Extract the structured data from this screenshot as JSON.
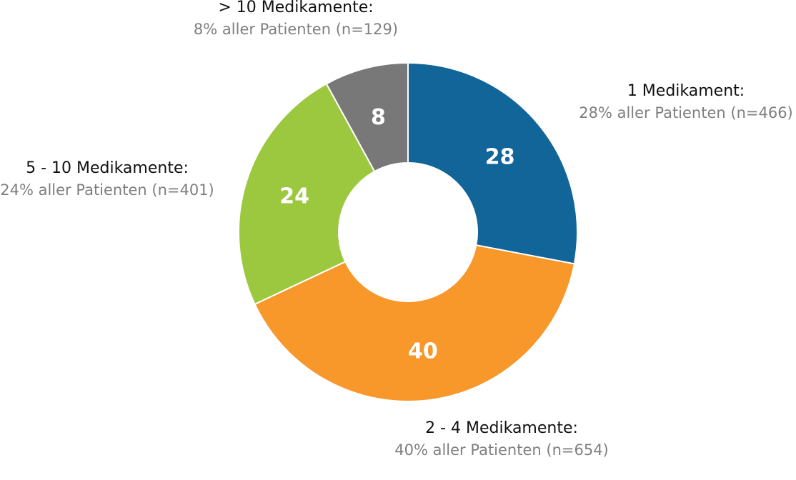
{
  "chart_data": {
    "type": "pie",
    "variant": "donut",
    "categories": [
      "1 Medikament:",
      "2 - 4 Medikamente:",
      "5 - 10 Medikamente:",
      "> 10 Medikamente:"
    ],
    "values": [
      28,
      40,
      24,
      8
    ],
    "slice_labels": [
      "28",
      "40",
      "24",
      "8"
    ],
    "annotations": [
      "28% aller Patienten (n=466)",
      "40% aller Patienten (n=654)",
      "24% aller Patienten (n=401)",
      "8% aller Patienten (n=129)"
    ],
    "colors": [
      "#126598",
      "#f8972a",
      "#9bc83f",
      "#787878"
    ],
    "start": "top",
    "direction": "clockwise",
    "legend": "none"
  }
}
